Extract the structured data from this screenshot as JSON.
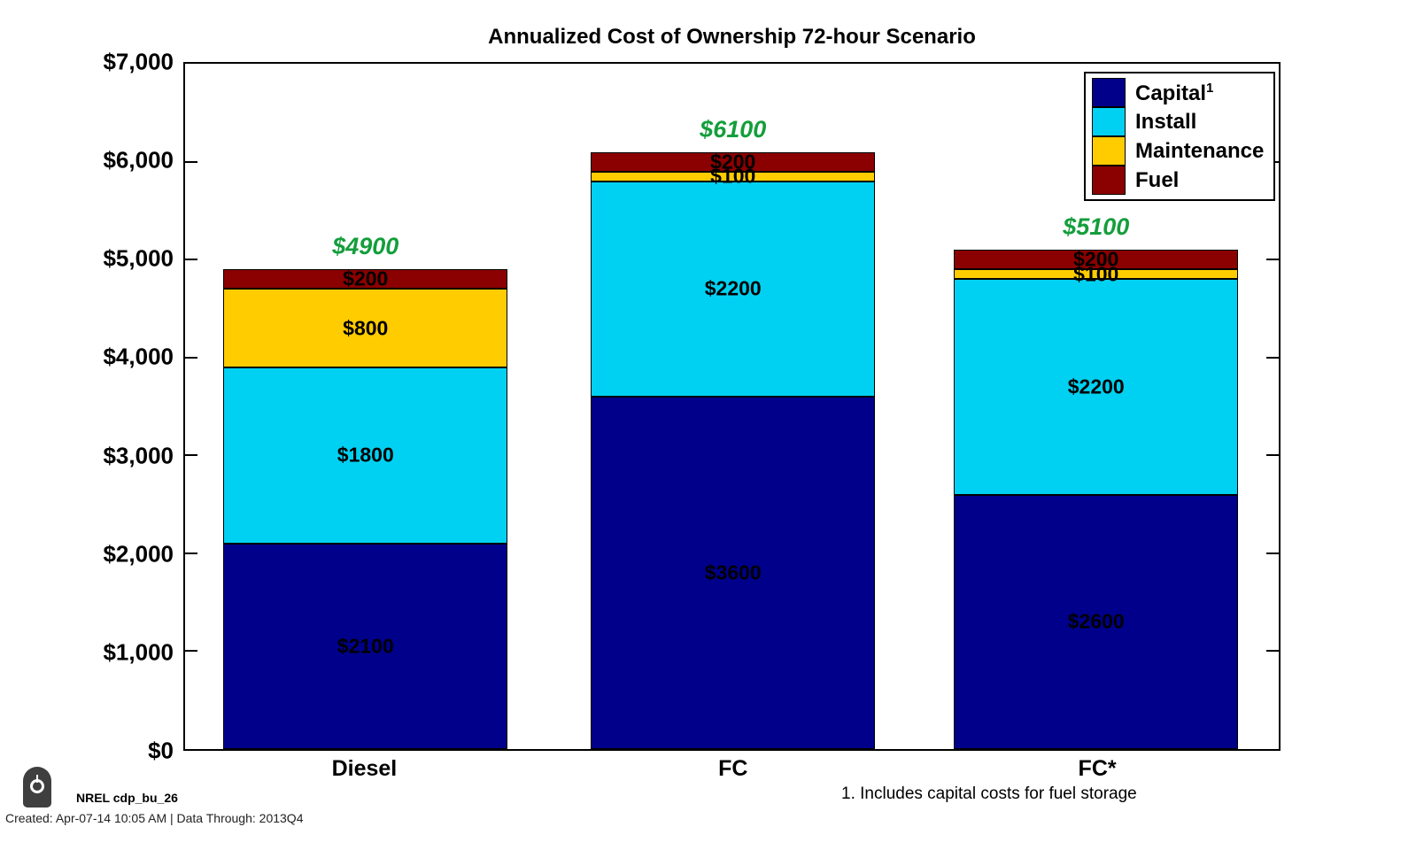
{
  "title": "Annualized Cost of Ownership 72-hour Scenario",
  "chart_data": {
    "type": "bar",
    "stacked": true,
    "categories": [
      "Diesel",
      "FC",
      "FC*"
    ],
    "series": [
      {
        "name": "Capital",
        "sup": "1",
        "color": "#00008B",
        "values": [
          2100,
          3600,
          2600
        ]
      },
      {
        "name": "Install",
        "color": "#00D1F2",
        "values": [
          1800,
          2200,
          2200
        ]
      },
      {
        "name": "Maintenance",
        "color": "#FFCC00",
        "values": [
          800,
          100,
          100
        ]
      },
      {
        "name": "Fuel",
        "color": "#8B0000",
        "values": [
          200,
          200,
          200
        ]
      }
    ],
    "totals": [
      4900,
      6100,
      5100
    ],
    "value_prefix": "$",
    "total_color": "#149E3C",
    "ylim": [
      0,
      7000
    ],
    "y_tick_step": 1000,
    "y_tick_labels": [
      "$0",
      "$1,000",
      "$2,000",
      "$3,000",
      "$4,000",
      "$5,000",
      "$6,000",
      "$7,000"
    ],
    "xlabel": "",
    "ylabel": "",
    "grid": false,
    "legend_position": "top-right"
  },
  "footer": {
    "logo_icon": "power-icon",
    "doc_id": "NREL cdp_bu_26",
    "created": "Created: Apr-07-14 10:05 AM | Data Through: 2013Q4",
    "footnote": "1. Includes capital costs for fuel storage"
  }
}
